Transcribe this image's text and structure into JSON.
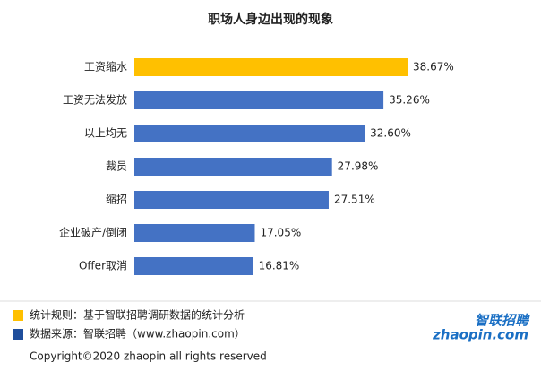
{
  "chart_data": {
    "type": "hbar",
    "title": "职场人身边出现的现象",
    "categories": [
      "工资缩水",
      "工资无法发放",
      "以上均无",
      "裁员",
      "缩招",
      "企业破产/倒闭",
      "Offer取消"
    ],
    "values": [
      38.67,
      35.26,
      32.6,
      27.98,
      27.51,
      17.05,
      16.81
    ],
    "value_labels": [
      "38.67%",
      "35.26%",
      "32.60%",
      "27.98%",
      "27.51%",
      "17.05%",
      "16.81%"
    ],
    "colors": [
      "#ffc000",
      "#4472c4",
      "#4472c4",
      "#4472c4",
      "#4472c4",
      "#4472c4",
      "#4472c4"
    ],
    "notes": [
      {
        "text": "统计规则：基于智联招聘调研数据的统计分析",
        "color": "#ffc000"
      },
      {
        "text": "数据来源：智联招聘（www.zhaopin.com）",
        "color": "#1f4e9c"
      }
    ],
    "copyright": "Copyright©2020 zhaopin all rights reserved",
    "logo": {
      "cn": "智联招聘",
      "en": "zhaopin.com"
    }
  }
}
